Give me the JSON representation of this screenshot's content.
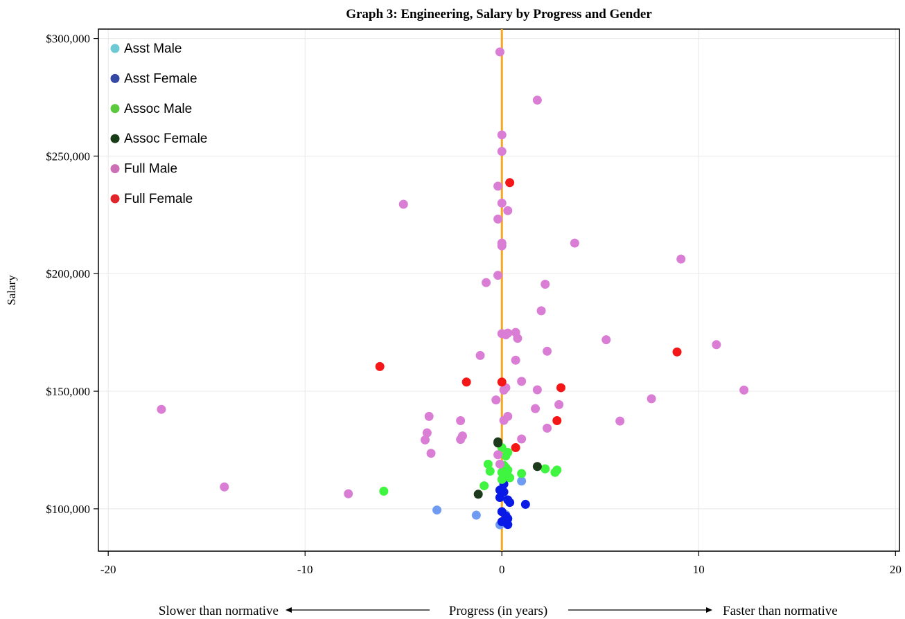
{
  "chart_data": {
    "type": "scatter",
    "title": "Graph 3: Engineering, Salary by Progress and Gender",
    "xlabel": "Progress (in years)",
    "xlabel_left": "Slower than normative",
    "xlabel_right": "Faster than normative",
    "ylabel": "Salary",
    "xlim": [
      -20.5,
      20.2
    ],
    "ylim": [
      82000,
      304000
    ],
    "x_ticks": [
      -20,
      -10,
      0,
      10,
      20
    ],
    "x_tick_labels": [
      "-20",
      "-10",
      "0",
      "10",
      "20"
    ],
    "y_ticks": [
      100000,
      150000,
      200000,
      250000,
      300000
    ],
    "y_tick_labels": [
      "$100,000",
      "$150,000",
      "$200,000",
      "$250,000",
      "$300,000"
    ],
    "grid": true,
    "legend_position": "top-left",
    "reference_line": {
      "x": 0,
      "color": "#f5a623"
    },
    "series": [
      {
        "name": "Asst Male",
        "color": "#6ec9d4",
        "plot_color": "#6f9cf2",
        "points": [
          [
            -3.3,
            99500
          ],
          [
            -1.3,
            97300
          ],
          [
            1.0,
            111800
          ],
          [
            -0.1,
            93200
          ],
          [
            0.1,
            94300
          ],
          [
            0.2,
            97500
          ]
        ]
      },
      {
        "name": "Asst Female",
        "color": "#3548a4",
        "plot_color": "#0a1ae6",
        "points": [
          [
            -0.1,
            108000
          ],
          [
            0.1,
            107200
          ],
          [
            -0.1,
            104800
          ],
          [
            0.3,
            103800
          ],
          [
            0.4,
            102700
          ],
          [
            1.2,
            101900
          ],
          [
            0.0,
            98800
          ],
          [
            0.2,
            96900
          ],
          [
            0.3,
            95800
          ],
          [
            0.0,
            94500
          ],
          [
            0.3,
            93300
          ],
          [
            0.1,
            110500
          ]
        ]
      },
      {
        "name": "Assoc Male",
        "color": "#5ac93c",
        "plot_color": "#3ff53f",
        "points": [
          [
            0.0,
            126000
          ],
          [
            0.3,
            124000
          ],
          [
            0.2,
            122500
          ],
          [
            -0.7,
            119000
          ],
          [
            0.1,
            118500
          ],
          [
            0.2,
            117500
          ],
          [
            0.3,
            116500
          ],
          [
            -0.6,
            116000
          ],
          [
            2.2,
            117000
          ],
          [
            2.8,
            116500
          ],
          [
            2.7,
            115500
          ],
          [
            1.0,
            115000
          ],
          [
            0.0,
            115500
          ],
          [
            0.1,
            114500
          ],
          [
            0.3,
            114000
          ],
          [
            0.4,
            113200
          ],
          [
            0.0,
            112500
          ],
          [
            -0.9,
            109800
          ],
          [
            -6.0,
            107500
          ]
        ]
      },
      {
        "name": "Assoc Female",
        "color": "#173c17",
        "plot_color": "#1d3a1d",
        "points": [
          [
            -0.2,
            128500
          ],
          [
            -0.2,
            128000
          ],
          [
            1.8,
            118000
          ],
          [
            -1.2,
            106200
          ]
        ]
      },
      {
        "name": "Full Male",
        "color": "#cc6fb4",
        "plot_color": "#da7dd4",
        "points": [
          [
            -0.1,
            294300
          ],
          [
            1.8,
            273800
          ],
          [
            0.0,
            259000
          ],
          [
            0.0,
            252000
          ],
          [
            -0.2,
            237200
          ],
          [
            0.0,
            230000
          ],
          [
            0.3,
            226800
          ],
          [
            -5.0,
            229500
          ],
          [
            -0.2,
            223200
          ],
          [
            0.0,
            213000
          ],
          [
            0.0,
            211800
          ],
          [
            3.7,
            213000
          ],
          [
            9.1,
            206200
          ],
          [
            -0.2,
            199300
          ],
          [
            -0.8,
            196200
          ],
          [
            2.2,
            195500
          ],
          [
            2.0,
            184200
          ],
          [
            0.7,
            175000
          ],
          [
            0.3,
            174700
          ],
          [
            0.0,
            174500
          ],
          [
            0.2,
            174000
          ],
          [
            0.8,
            172500
          ],
          [
            5.3,
            171900
          ],
          [
            10.9,
            169800
          ],
          [
            2.3,
            167000
          ],
          [
            -1.1,
            165200
          ],
          [
            0.7,
            163200
          ],
          [
            1.0,
            154200
          ],
          [
            0.2,
            151500
          ],
          [
            0.1,
            150500
          ],
          [
            1.8,
            150600
          ],
          [
            12.3,
            150500
          ],
          [
            -0.3,
            146300
          ],
          [
            7.6,
            146800
          ],
          [
            2.9,
            144300
          ],
          [
            1.7,
            142600
          ],
          [
            -17.3,
            142300
          ],
          [
            -3.7,
            139300
          ],
          [
            0.3,
            139300
          ],
          [
            0.1,
            137600
          ],
          [
            6.0,
            137300
          ],
          [
            -2.1,
            137500
          ],
          [
            2.3,
            134300
          ],
          [
            -3.8,
            132300
          ],
          [
            -2.0,
            131000
          ],
          [
            -2.1,
            129500
          ],
          [
            1.0,
            129700
          ],
          [
            -3.9,
            129300
          ],
          [
            -3.6,
            123600
          ],
          [
            -0.2,
            123000
          ],
          [
            -0.1,
            119000
          ],
          [
            -14.1,
            109300
          ],
          [
            -7.8,
            106400
          ]
        ]
      },
      {
        "name": "Full Female",
        "color": "#e0262b",
        "plot_color": "#f51717",
        "points": [
          [
            0.4,
            238700
          ],
          [
            -6.2,
            160500
          ],
          [
            -1.8,
            153900
          ],
          [
            0.0,
            153900
          ],
          [
            3.0,
            151500
          ],
          [
            8.9,
            166700
          ],
          [
            2.8,
            137500
          ],
          [
            0.7,
            126000
          ]
        ]
      }
    ]
  }
}
